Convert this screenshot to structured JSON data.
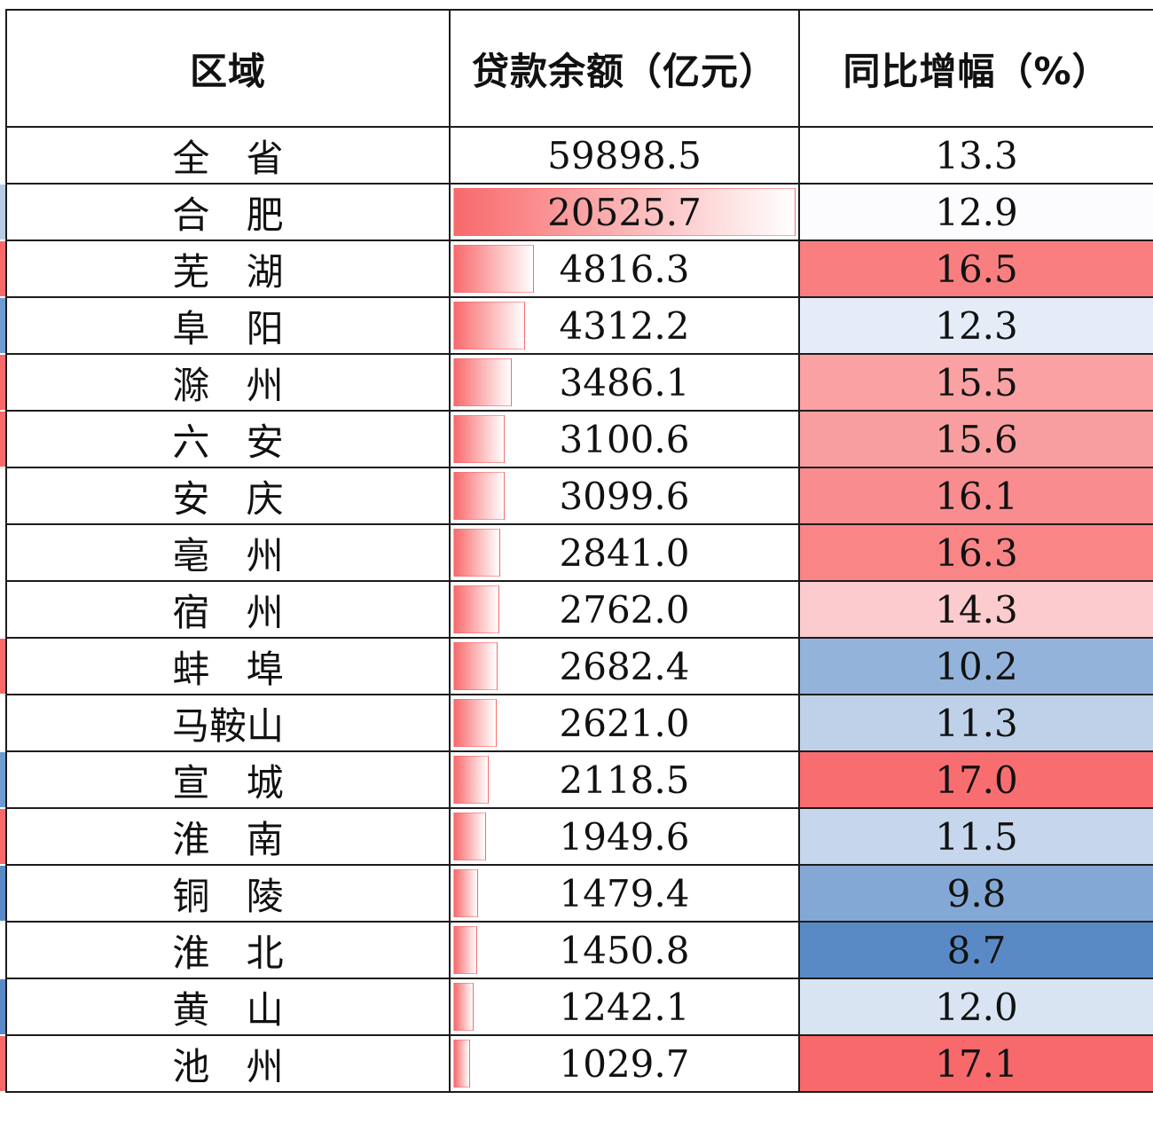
{
  "chart_data": {
    "type": "table",
    "columns": [
      "区域",
      "贷款余额（亿元）",
      "同比增幅（%）"
    ],
    "rows": [
      {
        "region": "全 省",
        "loan": "59898.5",
        "growth": "13.3",
        "loan_value": 59898.5,
        "growth_value": 13.3,
        "total": true
      },
      {
        "region": "合 肥",
        "loan": "20525.7",
        "growth": "12.9",
        "loan_value": 20525.7,
        "growth_value": 12.9
      },
      {
        "region": "芜 湖",
        "loan": "4816.3",
        "growth": "16.5",
        "loan_value": 4816.3,
        "growth_value": 16.5
      },
      {
        "region": "阜 阳",
        "loan": "4312.2",
        "growth": "12.3",
        "loan_value": 4312.2,
        "growth_value": 12.3
      },
      {
        "region": "滁 州",
        "loan": "3486.1",
        "growth": "15.5",
        "loan_value": 3486.1,
        "growth_value": 15.5
      },
      {
        "region": "六 安",
        "loan": "3100.6",
        "growth": "15.6",
        "loan_value": 3100.6,
        "growth_value": 15.6
      },
      {
        "region": "安 庆",
        "loan": "3099.6",
        "growth": "16.1",
        "loan_value": 3099.6,
        "growth_value": 16.1
      },
      {
        "region": "亳 州",
        "loan": "2841.0",
        "growth": "16.3",
        "loan_value": 2841.0,
        "growth_value": 16.3
      },
      {
        "region": "宿 州",
        "loan": "2762.0",
        "growth": "14.3",
        "loan_value": 2762.0,
        "growth_value": 14.3
      },
      {
        "region": "蚌 埠",
        "loan": "2682.4",
        "growth": "10.2",
        "loan_value": 2682.4,
        "growth_value": 10.2
      },
      {
        "region": "马鞍山",
        "loan": "2621.0",
        "growth": "11.3",
        "loan_value": 2621.0,
        "growth_value": 11.3
      },
      {
        "region": "宣 城",
        "loan": "2118.5",
        "growth": "17.0",
        "loan_value": 2118.5,
        "growth_value": 17.0
      },
      {
        "region": "淮 南",
        "loan": "1949.6",
        "growth": "11.5",
        "loan_value": 1949.6,
        "growth_value": 11.5
      },
      {
        "region": "铜 陵",
        "loan": "1479.4",
        "growth": "9.8",
        "loan_value": 1479.4,
        "growth_value": 9.8
      },
      {
        "region": "淮 北",
        "loan": "1450.8",
        "growth": "8.7",
        "loan_value": 1450.8,
        "growth_value": 8.7
      },
      {
        "region": "黄 山",
        "loan": "1242.1",
        "growth": "12.0",
        "loan_value": 1242.1,
        "growth_value": 12.0
      },
      {
        "region": "池 州",
        "loan": "1029.7",
        "growth": "17.1",
        "loan_value": 1029.7,
        "growth_value": 17.1
      }
    ],
    "loan_databar_color": "#f8696b",
    "growth_colorscale": {
      "low": "#5a8ac6",
      "mid": "#fcfcff",
      "high": "#f8696b"
    },
    "edge_strip_colors": [
      "#ffffff",
      "#b8cce4",
      "#f8696b",
      "#6f9bd1",
      "#f8696b",
      "#f8696b",
      "#ffffff",
      "#ffffff",
      "#ffffff",
      "#f8696b",
      "#ffffff",
      "#6f9bd1",
      "#f8696b",
      "#5a8ac6",
      "#ffffff",
      "#5a8ac6",
      "#f8696b"
    ],
    "grid": true
  }
}
